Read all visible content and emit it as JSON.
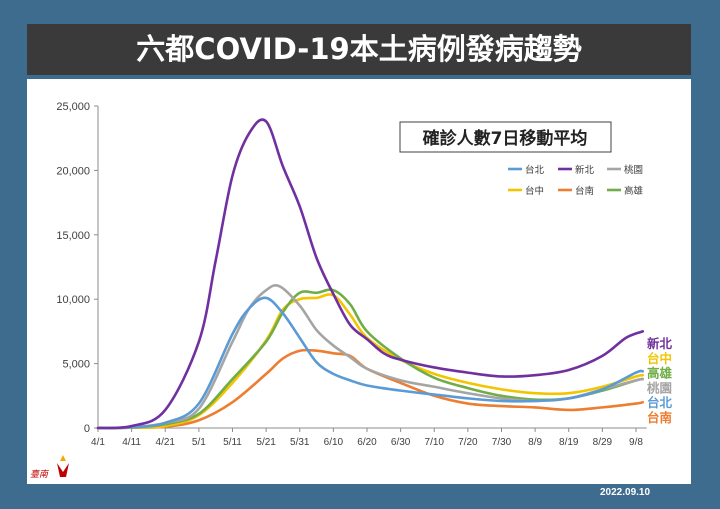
{
  "title": "六都COVID-19本土病例發病趨勢",
  "date_stamp": "2022.09.10",
  "logo_text": "臺南",
  "chart_data": {
    "type": "line",
    "title": "確診人數7日移動平均",
    "xlabel": "",
    "ylabel": "",
    "ylim": [
      0,
      25000
    ],
    "y_ticks": [
      "0",
      "5,000",
      "10,000",
      "15,000",
      "20,000",
      "25,000"
    ],
    "x_range_days": [
      "4/1",
      "9/10"
    ],
    "x_ticks": [
      "4/1",
      "4/11",
      "4/21",
      "5/1",
      "5/11",
      "5/21",
      "5/31",
      "6/10",
      "6/20",
      "6/30",
      "7/10",
      "7/20",
      "7/30",
      "8/9",
      "8/19",
      "8/29",
      "9/8"
    ],
    "grid": false,
    "legend_position": "top-right",
    "colors": {
      "taipei": "#5b9bd5",
      "new_taipei": "#7030a0",
      "taoyuan": "#a5a5a5",
      "taichung": "#f2c500",
      "tainan": "#ed7d31",
      "kaohsiung": "#70ad47"
    },
    "series": [
      {
        "key": "taipei",
        "name": "台北",
        "points": [
          [
            "4/1",
            0
          ],
          [
            "4/11",
            50
          ],
          [
            "4/21",
            400
          ],
          [
            "5/1",
            1900
          ],
          [
            "5/11",
            7300
          ],
          [
            "5/16",
            9300
          ],
          [
            "5/21",
            10100
          ],
          [
            "5/26",
            8900
          ],
          [
            "5/31",
            7000
          ],
          [
            "6/5",
            5100
          ],
          [
            "6/10",
            4200
          ],
          [
            "6/15",
            3700
          ],
          [
            "6/20",
            3300
          ],
          [
            "6/30",
            2900
          ],
          [
            "7/10",
            2600
          ],
          [
            "7/20",
            2300
          ],
          [
            "7/30",
            2100
          ],
          [
            "8/9",
            2100
          ],
          [
            "8/19",
            2300
          ],
          [
            "8/29",
            3000
          ],
          [
            "9/8",
            4300
          ],
          [
            "9/10",
            4400
          ]
        ]
      },
      {
        "key": "new_taipei",
        "name": "新北",
        "points": [
          [
            "4/1",
            0
          ],
          [
            "4/11",
            150
          ],
          [
            "4/21",
            1400
          ],
          [
            "5/1",
            6700
          ],
          [
            "5/6",
            13000
          ],
          [
            "5/11",
            19600
          ],
          [
            "5/16",
            22900
          ],
          [
            "5/21",
            23800
          ],
          [
            "5/26",
            20300
          ],
          [
            "5/31",
            17200
          ],
          [
            "6/5",
            13200
          ],
          [
            "6/10",
            10400
          ],
          [
            "6/15",
            8000
          ],
          [
            "6/20",
            6900
          ],
          [
            "6/25",
            5800
          ],
          [
            "6/30",
            5300
          ],
          [
            "7/10",
            4700
          ],
          [
            "7/20",
            4300
          ],
          [
            "7/30",
            4000
          ],
          [
            "8/9",
            4100
          ],
          [
            "8/19",
            4500
          ],
          [
            "8/29",
            5600
          ],
          [
            "9/5",
            7000
          ],
          [
            "9/10",
            7500
          ]
        ]
      },
      {
        "key": "taoyuan",
        "name": "桃園",
        "points": [
          [
            "4/1",
            0
          ],
          [
            "4/11",
            60
          ],
          [
            "4/21",
            400
          ],
          [
            "5/1",
            1500
          ],
          [
            "5/11",
            6700
          ],
          [
            "5/16",
            9300
          ],
          [
            "5/21",
            10700
          ],
          [
            "5/25",
            11000
          ],
          [
            "5/31",
            9500
          ],
          [
            "6/5",
            7600
          ],
          [
            "6/10",
            6400
          ],
          [
            "6/15",
            5500
          ],
          [
            "6/20",
            4600
          ],
          [
            "6/30",
            3700
          ],
          [
            "7/10",
            3200
          ],
          [
            "7/20",
            2700
          ],
          [
            "7/30",
            2300
          ],
          [
            "8/9",
            2100
          ],
          [
            "8/19",
            2300
          ],
          [
            "8/29",
            3000
          ],
          [
            "9/8",
            3700
          ],
          [
            "9/10",
            3800
          ]
        ]
      },
      {
        "key": "taichung",
        "name": "台中",
        "points": [
          [
            "4/1",
            0
          ],
          [
            "4/11",
            30
          ],
          [
            "4/21",
            150
          ],
          [
            "5/1",
            1000
          ],
          [
            "5/11",
            3500
          ],
          [
            "5/21",
            6800
          ],
          [
            "5/26",
            9200
          ],
          [
            "5/31",
            10000
          ],
          [
            "6/5",
            10100
          ],
          [
            "6/10",
            10300
          ],
          [
            "6/15",
            8800
          ],
          [
            "6/20",
            7000
          ],
          [
            "6/30",
            5300
          ],
          [
            "7/10",
            4200
          ],
          [
            "7/20",
            3500
          ],
          [
            "7/30",
            3000
          ],
          [
            "8/9",
            2700
          ],
          [
            "8/19",
            2700
          ],
          [
            "8/29",
            3200
          ],
          [
            "9/8",
            4000
          ],
          [
            "9/10",
            4100
          ]
        ]
      },
      {
        "key": "tainan",
        "name": "台南",
        "points": [
          [
            "4/1",
            0
          ],
          [
            "4/11",
            20
          ],
          [
            "4/21",
            100
          ],
          [
            "5/1",
            600
          ],
          [
            "5/11",
            2000
          ],
          [
            "5/21",
            4200
          ],
          [
            "5/26",
            5400
          ],
          [
            "5/31",
            6000
          ],
          [
            "6/5",
            6000
          ],
          [
            "6/10",
            5800
          ],
          [
            "6/15",
            5600
          ],
          [
            "6/20",
            4600
          ],
          [
            "6/30",
            3500
          ],
          [
            "7/10",
            2500
          ],
          [
            "7/20",
            1900
          ],
          [
            "7/30",
            1700
          ],
          [
            "8/9",
            1600
          ],
          [
            "8/19",
            1400
          ],
          [
            "8/29",
            1600
          ],
          [
            "9/8",
            1900
          ],
          [
            "9/10",
            2000
          ]
        ]
      },
      {
        "key": "kaohsiung",
        "name": "高雄",
        "points": [
          [
            "4/1",
            0
          ],
          [
            "4/11",
            40
          ],
          [
            "4/21",
            300
          ],
          [
            "5/1",
            1100
          ],
          [
            "5/11",
            3800
          ],
          [
            "5/21",
            6700
          ],
          [
            "5/26",
            9000
          ],
          [
            "5/31",
            10500
          ],
          [
            "6/5",
            10500
          ],
          [
            "6/10",
            10700
          ],
          [
            "6/15",
            9600
          ],
          [
            "6/20",
            7500
          ],
          [
            "6/30",
            5400
          ],
          [
            "7/10",
            3900
          ],
          [
            "7/20",
            3100
          ],
          [
            "7/30",
            2500
          ],
          [
            "8/9",
            2200
          ],
          [
            "8/19",
            2300
          ],
          [
            "8/29",
            2900
          ],
          [
            "9/8",
            3700
          ],
          [
            "9/10",
            3800
          ]
        ]
      }
    ],
    "end_labels_order": [
      "new_taipei",
      "taichung",
      "kaohsiung",
      "taoyuan",
      "taipei",
      "tainan"
    ]
  }
}
